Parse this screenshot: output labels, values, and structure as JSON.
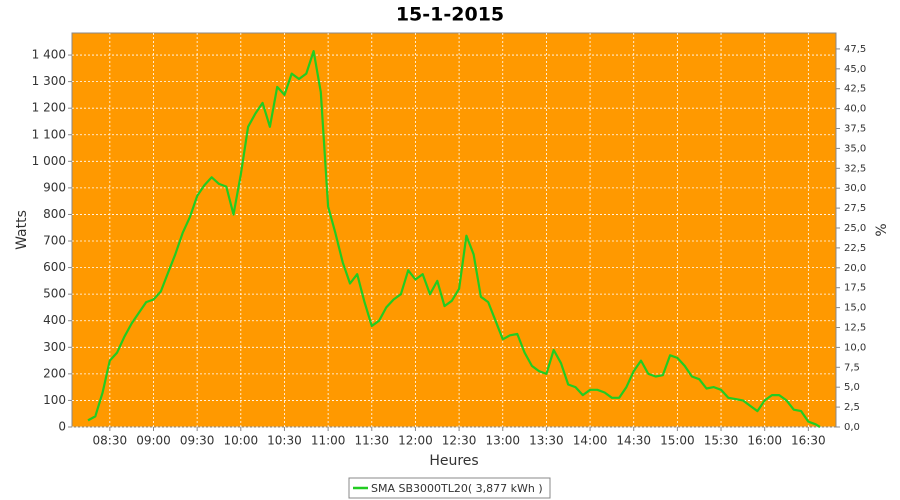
{
  "chart_data": {
    "type": "line",
    "title": "15-1-2015",
    "xlabel": "Heures",
    "ylabel": "Watts",
    "y2label": "%",
    "background": "#ff9900",
    "grid": true,
    "x": [
      "08:15",
      "08:20",
      "08:25",
      "08:30",
      "08:35",
      "08:40",
      "08:45",
      "08:50",
      "08:55",
      "09:00",
      "09:05",
      "09:10",
      "09:15",
      "09:20",
      "09:25",
      "09:30",
      "09:35",
      "09:40",
      "09:45",
      "09:50",
      "09:55",
      "10:00",
      "10:05",
      "10:10",
      "10:15",
      "10:20",
      "10:25",
      "10:30",
      "10:35",
      "10:40",
      "10:45",
      "10:50",
      "10:55",
      "11:00",
      "11:05",
      "11:10",
      "11:15",
      "11:20",
      "11:25",
      "11:30",
      "11:35",
      "11:40",
      "11:45",
      "11:50",
      "11:55",
      "12:00",
      "12:05",
      "12:10",
      "12:15",
      "12:20",
      "12:25",
      "12:30",
      "12:35",
      "12:40",
      "12:45",
      "12:50",
      "12:55",
      "13:00",
      "13:05",
      "13:10",
      "13:15",
      "13:20",
      "13:25",
      "13:30",
      "13:35",
      "13:40",
      "13:45",
      "13:50",
      "13:55",
      "14:00",
      "14:05",
      "14:10",
      "14:15",
      "14:20",
      "14:25",
      "14:30",
      "14:35",
      "14:40",
      "14:45",
      "14:50",
      "14:55",
      "15:00",
      "15:05",
      "15:10",
      "15:15",
      "15:20",
      "15:25",
      "15:30",
      "15:35",
      "15:40",
      "15:45",
      "15:50",
      "15:55",
      "16:00",
      "16:05",
      "16:10",
      "16:15",
      "16:20",
      "16:25",
      "16:30",
      "16:35",
      "16:38"
    ],
    "series": [
      {
        "name": "SMA SB3000TL20( 3,877 kWh )",
        "color": "#22cc22",
        "values": [
          25,
          40,
          130,
          250,
          280,
          340,
          390,
          430,
          470,
          480,
          510,
          580,
          650,
          730,
          790,
          870,
          910,
          940,
          915,
          905,
          800,
          950,
          1130,
          1180,
          1220,
          1130,
          1280,
          1250,
          1330,
          1310,
          1330,
          1415,
          1260,
          830,
          730,
          620,
          540,
          575,
          470,
          380,
          400,
          450,
          480,
          500,
          590,
          555,
          575,
          500,
          550,
          455,
          475,
          520,
          720,
          650,
          490,
          470,
          400,
          330,
          345,
          350,
          280,
          230,
          210,
          200,
          290,
          240,
          160,
          150,
          120,
          140,
          140,
          130,
          110,
          110,
          150,
          210,
          250,
          200,
          190,
          195,
          270,
          260,
          230,
          190,
          180,
          145,
          150,
          140,
          110,
          105,
          100,
          80,
          60,
          100,
          120,
          120,
          100,
          65,
          60,
          20,
          10,
          0
        ]
      }
    ],
    "xlim": [
      "08:04",
      "16:49"
    ],
    "xticks": [
      "08:30",
      "09:00",
      "09:30",
      "10:00",
      "10:30",
      "11:00",
      "11:30",
      "12:00",
      "12:30",
      "13:00",
      "13:30",
      "14:00",
      "14:30",
      "15:00",
      "15:30",
      "16:00",
      "16:30"
    ],
    "ylim": [
      0,
      1483
    ],
    "yticks": [
      0,
      100,
      200,
      300,
      400,
      500,
      600,
      700,
      800,
      900,
      {
        "value": 1000,
        "label": "1 000"
      },
      {
        "value": 1100,
        "label": "1 100"
      },
      {
        "value": 1200,
        "label": "1 200"
      },
      {
        "value": 1300,
        "label": "1 300"
      },
      {
        "value": 1400,
        "label": "1 400"
      }
    ],
    "y2lim": [
      0,
      49.5
    ],
    "y2ticks": [
      {
        "value": 0,
        "label": "0,0"
      },
      {
        "value": 2.5,
        "label": "2,5"
      },
      {
        "value": 5,
        "label": "5,0"
      },
      {
        "value": 7.5,
        "label": "7,5"
      },
      {
        "value": 10,
        "label": "10,0"
      },
      {
        "value": 12.5,
        "label": "12,5"
      },
      {
        "value": 15,
        "label": "15,0"
      },
      {
        "value": 17.5,
        "label": "17,5"
      },
      {
        "value": 20,
        "label": "20,0"
      },
      {
        "value": 22.5,
        "label": "22,5"
      },
      {
        "value": 25,
        "label": "25,0"
      },
      {
        "value": 27.5,
        "label": "27,5"
      },
      {
        "value": 30,
        "label": "30,0"
      },
      {
        "value": 32.5,
        "label": "32,5"
      },
      {
        "value": 35,
        "label": "35,0"
      },
      {
        "value": 37.5,
        "label": "37,5"
      },
      {
        "value": 40,
        "label": "40,0"
      },
      {
        "value": 42.5,
        "label": "42,5"
      },
      {
        "value": 45,
        "label": "45,0"
      },
      {
        "value": 47.5,
        "label": "47,5"
      }
    ]
  }
}
